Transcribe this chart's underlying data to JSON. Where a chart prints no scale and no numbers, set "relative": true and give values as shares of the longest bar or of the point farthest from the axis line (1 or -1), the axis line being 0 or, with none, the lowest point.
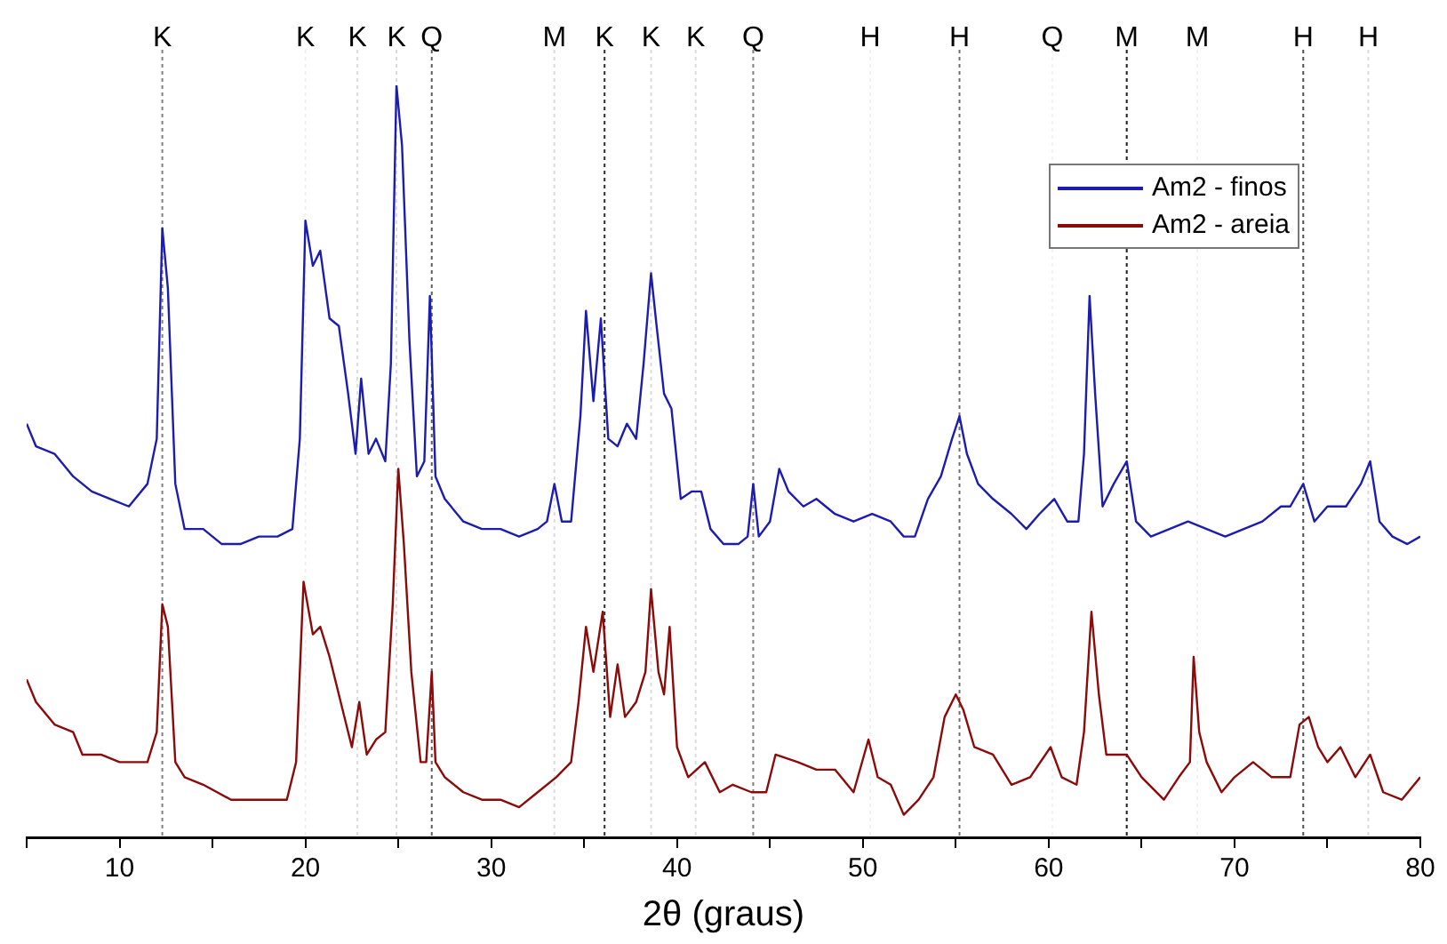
{
  "chart_data": {
    "type": "line",
    "relative": true,
    "xlabel": "2θ (graus)",
    "xlim": [
      5,
      80
    ],
    "xticks": [
      {
        "value": 5,
        "label": null
      },
      10,
      {
        "value": 15,
        "label": null
      },
      20,
      {
        "value": 25,
        "label": null
      },
      30,
      {
        "value": 35,
        "label": null
      },
      40,
      {
        "value": 45,
        "label": null
      },
      50,
      {
        "value": 55,
        "label": null
      },
      60,
      {
        "value": 65,
        "label": null
      },
      70,
      {
        "value": 75,
        "label": null
      },
      80
    ],
    "grid": false,
    "legend": "top right",
    "tick_labels": "x",
    "marker": "none",
    "line_style": "solid",
    "series": [
      {
        "name": "Am2 - finos",
        "color": "#1c1cb0",
        "x": [
          5,
          5.5,
          6.5,
          7.5,
          8.5,
          9.5,
          10.5,
          11.5,
          12.0,
          12.3,
          12.6,
          13.0,
          13.5,
          14.5,
          15.5,
          16.5,
          17.5,
          18.5,
          19.3,
          19.7,
          20.0,
          20.4,
          20.8,
          21.3,
          21.8,
          22.3,
          22.7,
          23.0,
          23.4,
          23.8,
          24.3,
          24.6,
          24.9,
          25.2,
          25.6,
          26.0,
          26.4,
          26.7,
          27.0,
          27.5,
          28.5,
          29.5,
          30.5,
          31.5,
          32.5,
          33.0,
          33.4,
          33.8,
          34.3,
          34.8,
          35.1,
          35.5,
          35.9,
          36.3,
          36.8,
          37.3,
          37.8,
          38.2,
          38.6,
          38.9,
          39.3,
          39.7,
          40.2,
          40.8,
          41.3,
          41.8,
          42.5,
          43.3,
          43.8,
          44.1,
          44.4,
          45.0,
          45.5,
          46.0,
          46.8,
          47.5,
          48.5,
          49.5,
          50.5,
          51.5,
          52.2,
          52.8,
          53.5,
          54.2,
          54.8,
          55.2,
          55.6,
          56.2,
          57.0,
          58.0,
          58.8,
          59.5,
          60.3,
          61.0,
          61.6,
          61.9,
          62.2,
          62.5,
          62.9,
          63.5,
          64.2,
          64.7,
          65.5,
          66.5,
          67.5,
          68.5,
          69.5,
          70.5,
          71.5,
          72.5,
          73.0,
          73.7,
          74.3,
          75.0,
          76.0,
          76.8,
          77.3,
          77.8,
          78.5,
          79.3,
          80
        ],
        "values": [
          0.55,
          0.52,
          0.51,
          0.48,
          0.46,
          0.45,
          0.44,
          0.47,
          0.53,
          0.81,
          0.73,
          0.47,
          0.41,
          0.41,
          0.39,
          0.39,
          0.4,
          0.4,
          0.41,
          0.53,
          0.82,
          0.76,
          0.78,
          0.69,
          0.68,
          0.59,
          0.51,
          0.61,
          0.51,
          0.53,
          0.5,
          0.63,
          1,
          0.92,
          0.66,
          0.48,
          0.5,
          0.72,
          0.48,
          0.45,
          0.42,
          0.41,
          0.41,
          0.4,
          0.41,
          0.42,
          0.47,
          0.42,
          0.42,
          0.56,
          0.7,
          0.58,
          0.69,
          0.53,
          0.52,
          0.55,
          0.53,
          0.63,
          0.75,
          0.68,
          0.59,
          0.57,
          0.45,
          0.46,
          0.46,
          0.41,
          0.39,
          0.39,
          0.4,
          0.47,
          0.4,
          0.42,
          0.49,
          0.46,
          0.44,
          0.45,
          0.43,
          0.42,
          0.43,
          0.42,
          0.4,
          0.4,
          0.45,
          0.48,
          0.53,
          0.56,
          0.51,
          0.47,
          0.45,
          0.43,
          0.41,
          0.43,
          0.45,
          0.42,
          0.42,
          0.51,
          0.72,
          0.59,
          0.44,
          0.47,
          0.5,
          0.42,
          0.4,
          0.41,
          0.42,
          0.41,
          0.4,
          0.41,
          0.42,
          0.44,
          0.44,
          0.47,
          0.42,
          0.44,
          0.44,
          0.47,
          0.5,
          0.42,
          0.4,
          0.39,
          0.4
        ]
      },
      {
        "name": "Am2 - areia",
        "color": "#8b0a0a",
        "x": [
          5,
          5.5,
          6.5,
          7.5,
          8,
          9,
          10,
          11.5,
          12.0,
          12.3,
          12.6,
          13.0,
          13.5,
          14.5,
          16,
          17.5,
          19,
          19.5,
          19.9,
          20.4,
          20.8,
          21.3,
          22.0,
          22.5,
          22.9,
          23.3,
          23.8,
          24.3,
          24.7,
          25.0,
          25.3,
          25.7,
          26.2,
          26.5,
          26.8,
          27.0,
          27.5,
          28.5,
          29.5,
          30.5,
          31.5,
          32.5,
          33.5,
          34.3,
          34.7,
          35.1,
          35.5,
          36.0,
          36.4,
          36.8,
          37.2,
          37.8,
          38.3,
          38.6,
          39.0,
          39.3,
          39.6,
          40.0,
          40.6,
          41.5,
          42.3,
          43,
          44,
          44.8,
          45.3,
          46.5,
          47.5,
          48.5,
          49.5,
          50.3,
          50.8,
          51.5,
          52.2,
          53,
          53.8,
          54.4,
          55.0,
          55.4,
          56,
          57,
          58,
          59,
          60.1,
          60.7,
          61.5,
          61.9,
          62.3,
          62.7,
          63.1,
          64.2,
          65,
          66.2,
          67,
          67.6,
          67.8,
          68.1,
          68.5,
          69.3,
          70,
          71,
          72,
          73,
          73.5,
          74.0,
          74.5,
          75.0,
          75.7,
          76.5,
          77.3,
          78,
          79,
          80
        ],
        "values": [
          0.21,
          0.18,
          0.15,
          0.14,
          0.11,
          0.11,
          0.1,
          0.1,
          0.14,
          0.31,
          0.28,
          0.1,
          0.08,
          0.07,
          0.05,
          0.05,
          0.05,
          0.1,
          0.34,
          0.27,
          0.28,
          0.24,
          0.17,
          0.12,
          0.18,
          0.11,
          0.13,
          0.14,
          0.31,
          0.49,
          0.39,
          0.22,
          0.1,
          0.1,
          0.22,
          0.1,
          0.08,
          0.06,
          0.05,
          0.05,
          0.04,
          0.06,
          0.08,
          0.1,
          0.18,
          0.28,
          0.22,
          0.3,
          0.16,
          0.23,
          0.16,
          0.18,
          0.22,
          0.33,
          0.22,
          0.19,
          0.28,
          0.12,
          0.08,
          0.1,
          0.06,
          0.07,
          0.06,
          0.06,
          0.11,
          0.1,
          0.09,
          0.09,
          0.06,
          0.13,
          0.08,
          0.07,
          0.03,
          0.05,
          0.08,
          0.16,
          0.19,
          0.17,
          0.12,
          0.11,
          0.07,
          0.08,
          0.12,
          0.08,
          0.07,
          0.14,
          0.3,
          0.19,
          0.11,
          0.11,
          0.08,
          0.05,
          0.08,
          0.1,
          0.24,
          0.14,
          0.1,
          0.06,
          0.08,
          0.1,
          0.08,
          0.08,
          0.15,
          0.16,
          0.12,
          0.1,
          0.12,
          0.08,
          0.11,
          0.06,
          0.05,
          0.08
        ]
      }
    ],
    "ref_lines": [
      {
        "axis": "x",
        "value": 12.3,
        "label": "K",
        "color": "#808080",
        "line_style": "dotted"
      },
      {
        "axis": "x",
        "value": 20.0,
        "label": "K",
        "color": "#f0f0f0",
        "line_style": "dotted"
      },
      {
        "axis": "x",
        "value": 22.8,
        "label": "K",
        "color": "#dcdcdc",
        "line_style": "dotted"
      },
      {
        "axis": "x",
        "value": 24.9,
        "label": "K",
        "color": "#dcdcdc",
        "line_style": "dotted"
      },
      {
        "axis": "x",
        "value": 26.8,
        "label": "Q",
        "color": "#606060",
        "line_style": "dotted"
      },
      {
        "axis": "x",
        "value": 33.4,
        "label": "M",
        "color": "#dcdcdc",
        "line_style": "dotted"
      },
      {
        "axis": "x",
        "value": 36.1,
        "label": "K",
        "color": "#303030",
        "line_style": "dotted"
      },
      {
        "axis": "x",
        "value": 38.6,
        "label": "K",
        "color": "#dcdcdc",
        "line_style": "dotted"
      },
      {
        "axis": "x",
        "value": 41.0,
        "label": "K",
        "color": "#dcdcdc",
        "line_style": "dotted"
      },
      {
        "axis": "x",
        "value": 44.1,
        "label": "Q",
        "color": "#808080",
        "line_style": "dotted"
      },
      {
        "axis": "x",
        "value": 50.4,
        "label": "H",
        "color": "#f0f0f0",
        "line_style": "dotted"
      },
      {
        "axis": "x",
        "value": 55.2,
        "label": "H",
        "color": "#707070",
        "line_style": "dotted"
      },
      {
        "axis": "x",
        "value": 60.2,
        "label": "Q",
        "color": "#f0f0f0",
        "line_style": "dotted"
      },
      {
        "axis": "x",
        "value": 64.2,
        "label": "M",
        "color": "#202020",
        "line_style": "dotted"
      },
      {
        "axis": "x",
        "value": 68.0,
        "label": "M",
        "color": "#f0f0f0",
        "line_style": "dotted"
      },
      {
        "axis": "x",
        "value": 73.7,
        "label": "H",
        "color": "#505050",
        "line_style": "dotted"
      },
      {
        "axis": "x",
        "value": 77.2,
        "label": "H",
        "color": "#dcdcdc",
        "line_style": "dotted"
      }
    ]
  }
}
